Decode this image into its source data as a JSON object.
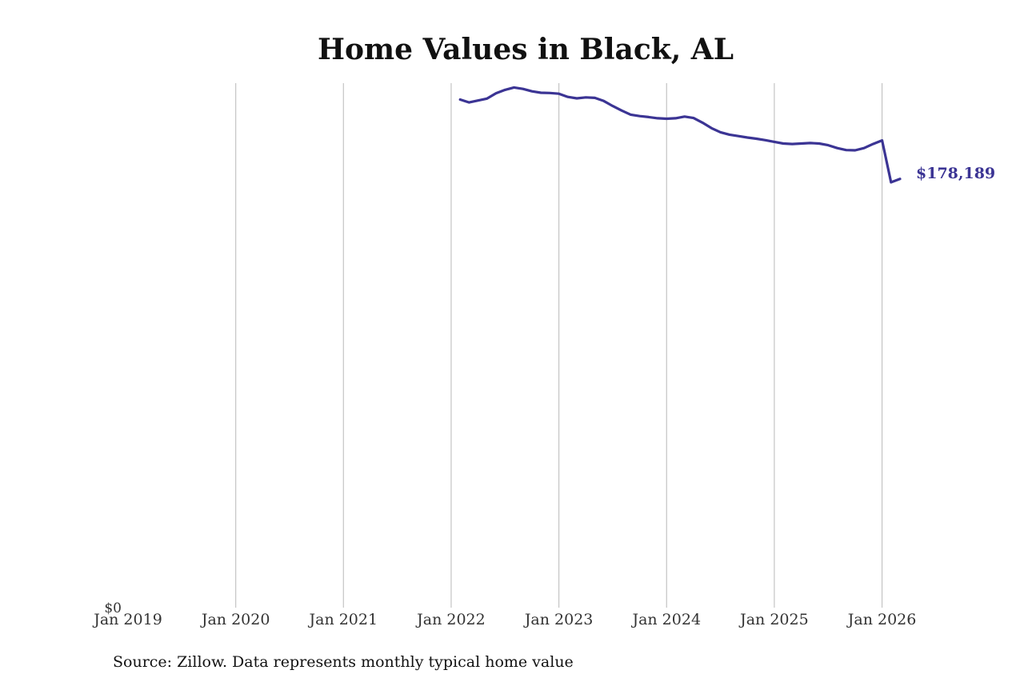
{
  "chart_data": {
    "type": "line",
    "title": "Home Values in Black, AL",
    "source_note": "Source: Zillow. Data represents monthly typical home value",
    "x_tick_labels": [
      "Jan 2019",
      "Jan 2020",
      "Jan 2021",
      "Jan 2022",
      "Jan 2023",
      "Jan 2024",
      "Jan 2025",
      "Jan 2026"
    ],
    "xlim": [
      "2019-01",
      "2026-03"
    ],
    "ylim": [
      0,
      218000
    ],
    "y_tick_labels": [
      "$0"
    ],
    "y_ticks": [
      0
    ],
    "grid": "vertical",
    "line_color": "#3b3494",
    "end_label": "$178,189",
    "series": [
      {
        "x": [
          "2022-02",
          "2022-03",
          "2022-04",
          "2022-05",
          "2022-06",
          "2022-07",
          "2022-08",
          "2022-09",
          "2022-10",
          "2022-11",
          "2022-12",
          "2023-01",
          "2023-02",
          "2023-03",
          "2023-04",
          "2023-05",
          "2023-06",
          "2023-07",
          "2023-08",
          "2023-09",
          "2023-10",
          "2023-11",
          "2023-12",
          "2024-01",
          "2024-02",
          "2024-03",
          "2024-04",
          "2024-05",
          "2024-06",
          "2024-07",
          "2024-08",
          "2024-09",
          "2024-10",
          "2024-11",
          "2024-12",
          "2025-01",
          "2025-02",
          "2025-03",
          "2025-04",
          "2025-05",
          "2025-06",
          "2025-07",
          "2025-08",
          "2025-09",
          "2025-10",
          "2025-11",
          "2025-12",
          "2026-01",
          "2026-02",
          "2026-03"
        ],
        "values": [
          211200,
          210000,
          210800,
          211600,
          213800,
          215200,
          216200,
          215600,
          214600,
          214000,
          213900,
          213600,
          212300,
          211700,
          212100,
          211900,
          210600,
          208500,
          206600,
          204900,
          204300,
          203900,
          203400,
          203200,
          203400,
          204100,
          203500,
          201600,
          199300,
          197600,
          196600,
          196000,
          195400,
          194900,
          194300,
          193600,
          192900,
          192700,
          192900,
          193100,
          192900,
          192200,
          191000,
          190200,
          190100,
          191000,
          192700,
          194200,
          176800,
          178189
        ]
      }
    ]
  }
}
